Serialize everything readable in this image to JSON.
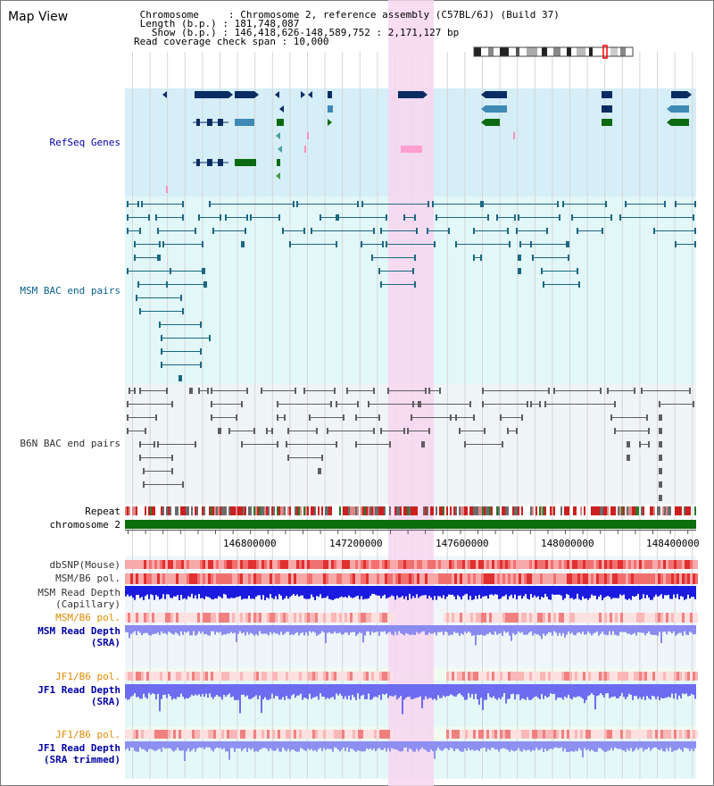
{
  "panel_title": "Map View",
  "info": {
    "line1": " Chromosome     : Chromosome 2, reference assembly (C57BL/6J) (Build 37)",
    "line2": " Length (b.p.) : 181,748,087",
    "line3": "   Show (b.p.) : 146,418,626-148,589,752 : 2,171,127 bp",
    "line4": "Read coverage check span : 10,000"
  },
  "tracks": {
    "refseq": "RefSeq Genes",
    "msm_bac": "MSM BAC end pairs",
    "b6n_bac": "B6N BAC end pairs",
    "repeat": "Repeat",
    "chromosome": "chromosome 2",
    "dbsnp": "dbSNP(Mouse)",
    "msm_b6_pol_1": "MSM/B6 pol.",
    "msm_depth_cap_1": "MSM Read Depth",
    "msm_depth_cap_2": "(Capillary)",
    "msm_b6_pol_2": "MSM/B6 pol.",
    "msm_depth_sra_1": "MSM Read Depth",
    "msm_depth_sra_2": "(SRA)",
    "jf1_b6_pol_1": "JF1/B6 pol.",
    "jf1_depth_sra_1": "JF1 Read Depth",
    "jf1_depth_sra_2": "(SRA)",
    "jf1_b6_pol_2": "JF1/B6 pol.",
    "jf1_depth_trim_1": "JF1 Read Depth",
    "jf1_depth_trim_2": "(SRA trimmed)"
  },
  "ruler": {
    "ticks": [
      "146800000",
      "147200000",
      "147600000",
      "148000000",
      "148400000"
    ]
  },
  "colors": {
    "refseq_bg": "#d5eef8",
    "msm_bg": "#e2f7f8",
    "b6n_bg": "#eff4f6",
    "highlight": "#f7d6f0",
    "gene_dark": "#0a2c63",
    "gene_mid": "#3f8ab5",
    "gene_green": "#0c6a12",
    "msm_line": "#1c6783",
    "b6n_line": "#5e5e5e",
    "chromosome": "#0b6f0b",
    "label_blue": "#0000a8",
    "label_teal": "#0a6090",
    "label_orange": "#e38a00"
  }
}
